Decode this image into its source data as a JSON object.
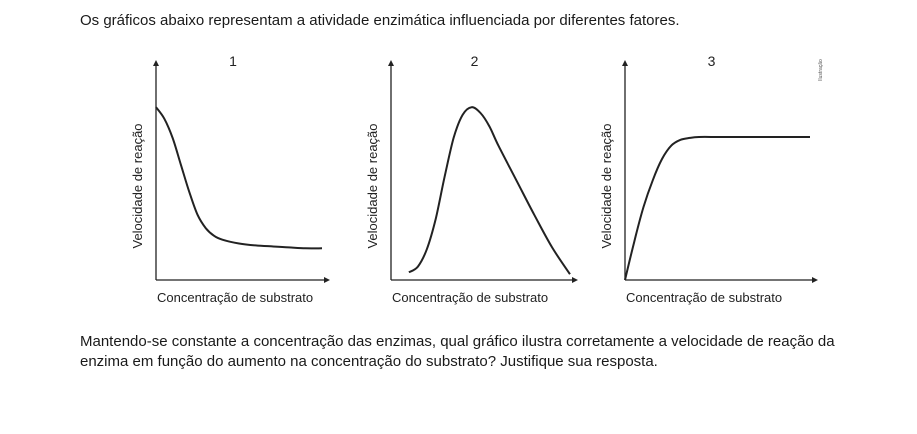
{
  "intro_text": "Os gráficos abaixo representam a atividade enzimática influenciada por diferentes fatores.",
  "figure": {
    "credit": "Ilustração",
    "axis_color": "#222222",
    "curve_color": "#222222"
  },
  "chart_data": [
    {
      "type": "line",
      "panel_label": "1",
      "xlabel": "Concentração de substrato",
      "ylabel": "Velocidade de reação",
      "series": [
        {
          "x": [
            0,
            0.05,
            0.1,
            0.15,
            0.2,
            0.25,
            0.3,
            0.35,
            0.4,
            0.5,
            0.6,
            0.7,
            0.8,
            0.9,
            1.0
          ],
          "y": [
            0.9,
            0.84,
            0.74,
            0.6,
            0.46,
            0.34,
            0.27,
            0.23,
            0.21,
            0.19,
            0.18,
            0.175,
            0.17,
            0.165,
            0.165
          ]
        }
      ]
    },
    {
      "type": "line",
      "panel_label": "2",
      "xlabel": "Concentração de substrato",
      "ylabel": "Velocidade de reação",
      "series": [
        {
          "x": [
            0.1,
            0.15,
            0.2,
            0.25,
            0.3,
            0.35,
            0.4,
            0.45,
            0.5,
            0.55,
            0.6,
            0.7,
            0.8,
            0.9,
            1.0
          ],
          "y": [
            0.04,
            0.07,
            0.16,
            0.32,
            0.54,
            0.74,
            0.86,
            0.9,
            0.87,
            0.8,
            0.7,
            0.52,
            0.34,
            0.17,
            0.03
          ]
        }
      ]
    },
    {
      "type": "line",
      "panel_label": "3",
      "xlabel": "Concentração de substrato",
      "ylabel": "Velocidade de reação",
      "series": [
        {
          "x": [
            0,
            0.05,
            0.1,
            0.15,
            0.2,
            0.25,
            0.3,
            0.35,
            0.4,
            0.5,
            0.6,
            0.7,
            0.8,
            0.9,
            1.0
          ],
          "y": [
            0,
            0.2,
            0.38,
            0.52,
            0.63,
            0.7,
            0.73,
            0.74,
            0.745,
            0.745,
            0.745,
            0.745,
            0.745,
            0.745,
            0.745
          ]
        }
      ]
    }
  ],
  "question_text": "Mantendo-se constante a concentração das enzimas, qual gráfico ilustra corretamente a velocidade de reação da enzima em função do aumento na concentração do substrato? Justifique sua resposta."
}
